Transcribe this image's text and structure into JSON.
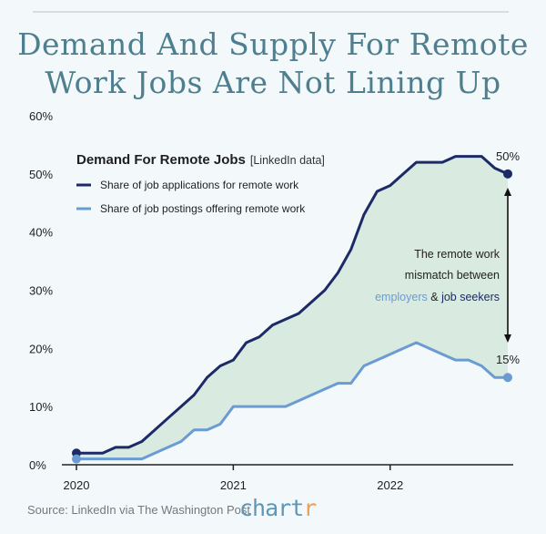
{
  "title": {
    "line1": "Demand And Supply For Remote",
    "line2": "Work Jobs Are Not Lining Up"
  },
  "colors": {
    "applications": "#1c2a66",
    "postings": "#6b9bd3",
    "fill": "#d9ebe1",
    "axis": "#222222",
    "text": "#1f1f1f",
    "muted": "#777777"
  },
  "chart_data": {
    "type": "line",
    "title": "Demand For Remote Jobs",
    "subtitle": "[LinkedIn data]",
    "xlabel": "",
    "ylabel": "",
    "xlim": [
      2020.0,
      2022.85
    ],
    "ylim": [
      0,
      60
    ],
    "yticks": [
      0,
      10,
      20,
      30,
      40,
      50,
      60
    ],
    "ytick_labels": [
      "0%",
      "10%",
      "20%",
      "30%",
      "40%",
      "50%",
      "60%"
    ],
    "xticks": [
      2020,
      2021,
      2022
    ],
    "xtick_labels": [
      "2020",
      "2021",
      "2022"
    ],
    "legend_position": "top-left",
    "series": [
      {
        "name": "Share of job applications for remote work",
        "x": [
          2020.0,
          2020.083,
          2020.167,
          2020.25,
          2020.333,
          2020.417,
          2020.5,
          2020.583,
          2020.667,
          2020.75,
          2020.833,
          2020.917,
          2021.0,
          2021.083,
          2021.167,
          2021.25,
          2021.333,
          2021.417,
          2021.5,
          2021.583,
          2021.667,
          2021.75,
          2021.833,
          2021.917,
          2022.0,
          2022.083,
          2022.167,
          2022.25,
          2022.333,
          2022.417,
          2022.5,
          2022.583,
          2022.667,
          2022.75
        ],
        "values": [
          2,
          2,
          2,
          3,
          3,
          4,
          6,
          8,
          10,
          12,
          15,
          17,
          18,
          21,
          22,
          24,
          25,
          26,
          28,
          30,
          33,
          37,
          43,
          47,
          48,
          50,
          52,
          52,
          52,
          53,
          53,
          53,
          51,
          50
        ]
      },
      {
        "name": "Share of job postings offering remote work",
        "x": [
          2020.0,
          2020.083,
          2020.167,
          2020.25,
          2020.333,
          2020.417,
          2020.5,
          2020.583,
          2020.667,
          2020.75,
          2020.833,
          2020.917,
          2021.0,
          2021.083,
          2021.167,
          2021.25,
          2021.333,
          2021.417,
          2021.5,
          2021.583,
          2021.667,
          2021.75,
          2021.833,
          2021.917,
          2022.0,
          2022.083,
          2022.167,
          2022.25,
          2022.333,
          2022.417,
          2022.5,
          2022.583,
          2022.667,
          2022.75
        ],
        "values": [
          1,
          1,
          1,
          1,
          1,
          1,
          2,
          3,
          4,
          6,
          6,
          7,
          10,
          10,
          10,
          10,
          10,
          11,
          12,
          13,
          14,
          14,
          17,
          18,
          19,
          20,
          21,
          20,
          19,
          18,
          18,
          17,
          15,
          15
        ]
      }
    ],
    "end_labels": [
      "50%",
      "15%"
    ],
    "annotation": {
      "line1": "The remote work",
      "line2": "mismatch between",
      "employers": "employers",
      "amp": " & ",
      "seekers": "job seekers"
    }
  },
  "footer": {
    "source": "Source: LinkedIn via The Washington Post",
    "brand_main": "chart",
    "brand_r": "r"
  }
}
